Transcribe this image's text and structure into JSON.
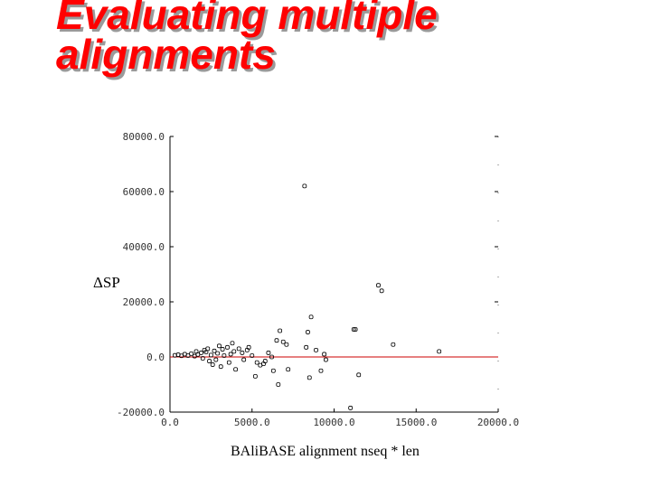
{
  "slide": {
    "title_line1": "Evaluating multiple",
    "title_line2": "alignments"
  },
  "chart_data": {
    "type": "scatter",
    "title": "",
    "xlabel": "BAliBASE alignment nseq * len",
    "ylabel": "ΔSP",
    "xlim": [
      0,
      20000
    ],
    "ylim": [
      -20000,
      80000
    ],
    "x_ticks": [
      "0.0",
      "5000.0",
      "10000.0",
      "15000.0",
      "20000.0"
    ],
    "y_ticks": [
      "-20000.0",
      "0.0",
      "20000.0",
      "40000.0",
      "60000.0",
      "80000.0"
    ],
    "x_tick_values": [
      0,
      5000,
      10000,
      15000,
      20000
    ],
    "y_tick_values": [
      -20000,
      0,
      20000,
      40000,
      60000,
      80000
    ],
    "reference_line": {
      "y": 0,
      "color": "#cc0000"
    },
    "grid": false,
    "points": [
      [
        300,
        600
      ],
      [
        500,
        800
      ],
      [
        700,
        400
      ],
      [
        900,
        1000
      ],
      [
        1100,
        500
      ],
      [
        1300,
        1200
      ],
      [
        1500,
        300
      ],
      [
        1600,
        2000
      ],
      [
        1700,
        900
      ],
      [
        1900,
        1500
      ],
      [
        2000,
        -500
      ],
      [
        2100,
        2500
      ],
      [
        2200,
        1800
      ],
      [
        2300,
        3000
      ],
      [
        2400,
        -1500
      ],
      [
        2500,
        700
      ],
      [
        2600,
        -2800
      ],
      [
        2700,
        2200
      ],
      [
        2800,
        -1000
      ],
      [
        2900,
        1300
      ],
      [
        3000,
        4000
      ],
      [
        3100,
        -3500
      ],
      [
        3200,
        2800
      ],
      [
        3300,
        500
      ],
      [
        3500,
        3500
      ],
      [
        3600,
        -2000
      ],
      [
        3700,
        1000
      ],
      [
        3800,
        5000
      ],
      [
        3900,
        2000
      ],
      [
        4000,
        -4500
      ],
      [
        4200,
        3000
      ],
      [
        4400,
        1500
      ],
      [
        4500,
        -1000
      ],
      [
        4700,
        2500
      ],
      [
        4800,
        3500
      ],
      [
        5000,
        500
      ],
      [
        5200,
        -7000
      ],
      [
        5300,
        -2000
      ],
      [
        5500,
        -3000
      ],
      [
        5700,
        -2500
      ],
      [
        5800,
        -1500
      ],
      [
        6000,
        1500
      ],
      [
        6200,
        0
      ],
      [
        6300,
        -5000
      ],
      [
        6500,
        6000
      ],
      [
        6600,
        -10000
      ],
      [
        6700,
        9500
      ],
      [
        6900,
        5500
      ],
      [
        7100,
        4500
      ],
      [
        7200,
        -4500
      ],
      [
        8200,
        62000
      ],
      [
        8300,
        3500
      ],
      [
        8400,
        9000
      ],
      [
        8500,
        -7500
      ],
      [
        8600,
        14500
      ],
      [
        8900,
        2500
      ],
      [
        9200,
        -5000
      ],
      [
        9400,
        1000
      ],
      [
        9500,
        -1000
      ],
      [
        11200,
        10000
      ],
      [
        11300,
        10000
      ],
      [
        11500,
        -6500
      ],
      [
        11000,
        -18500
      ],
      [
        12700,
        26000
      ],
      [
        12900,
        24000
      ],
      [
        13600,
        4500
      ],
      [
        16400,
        2000
      ]
    ]
  }
}
